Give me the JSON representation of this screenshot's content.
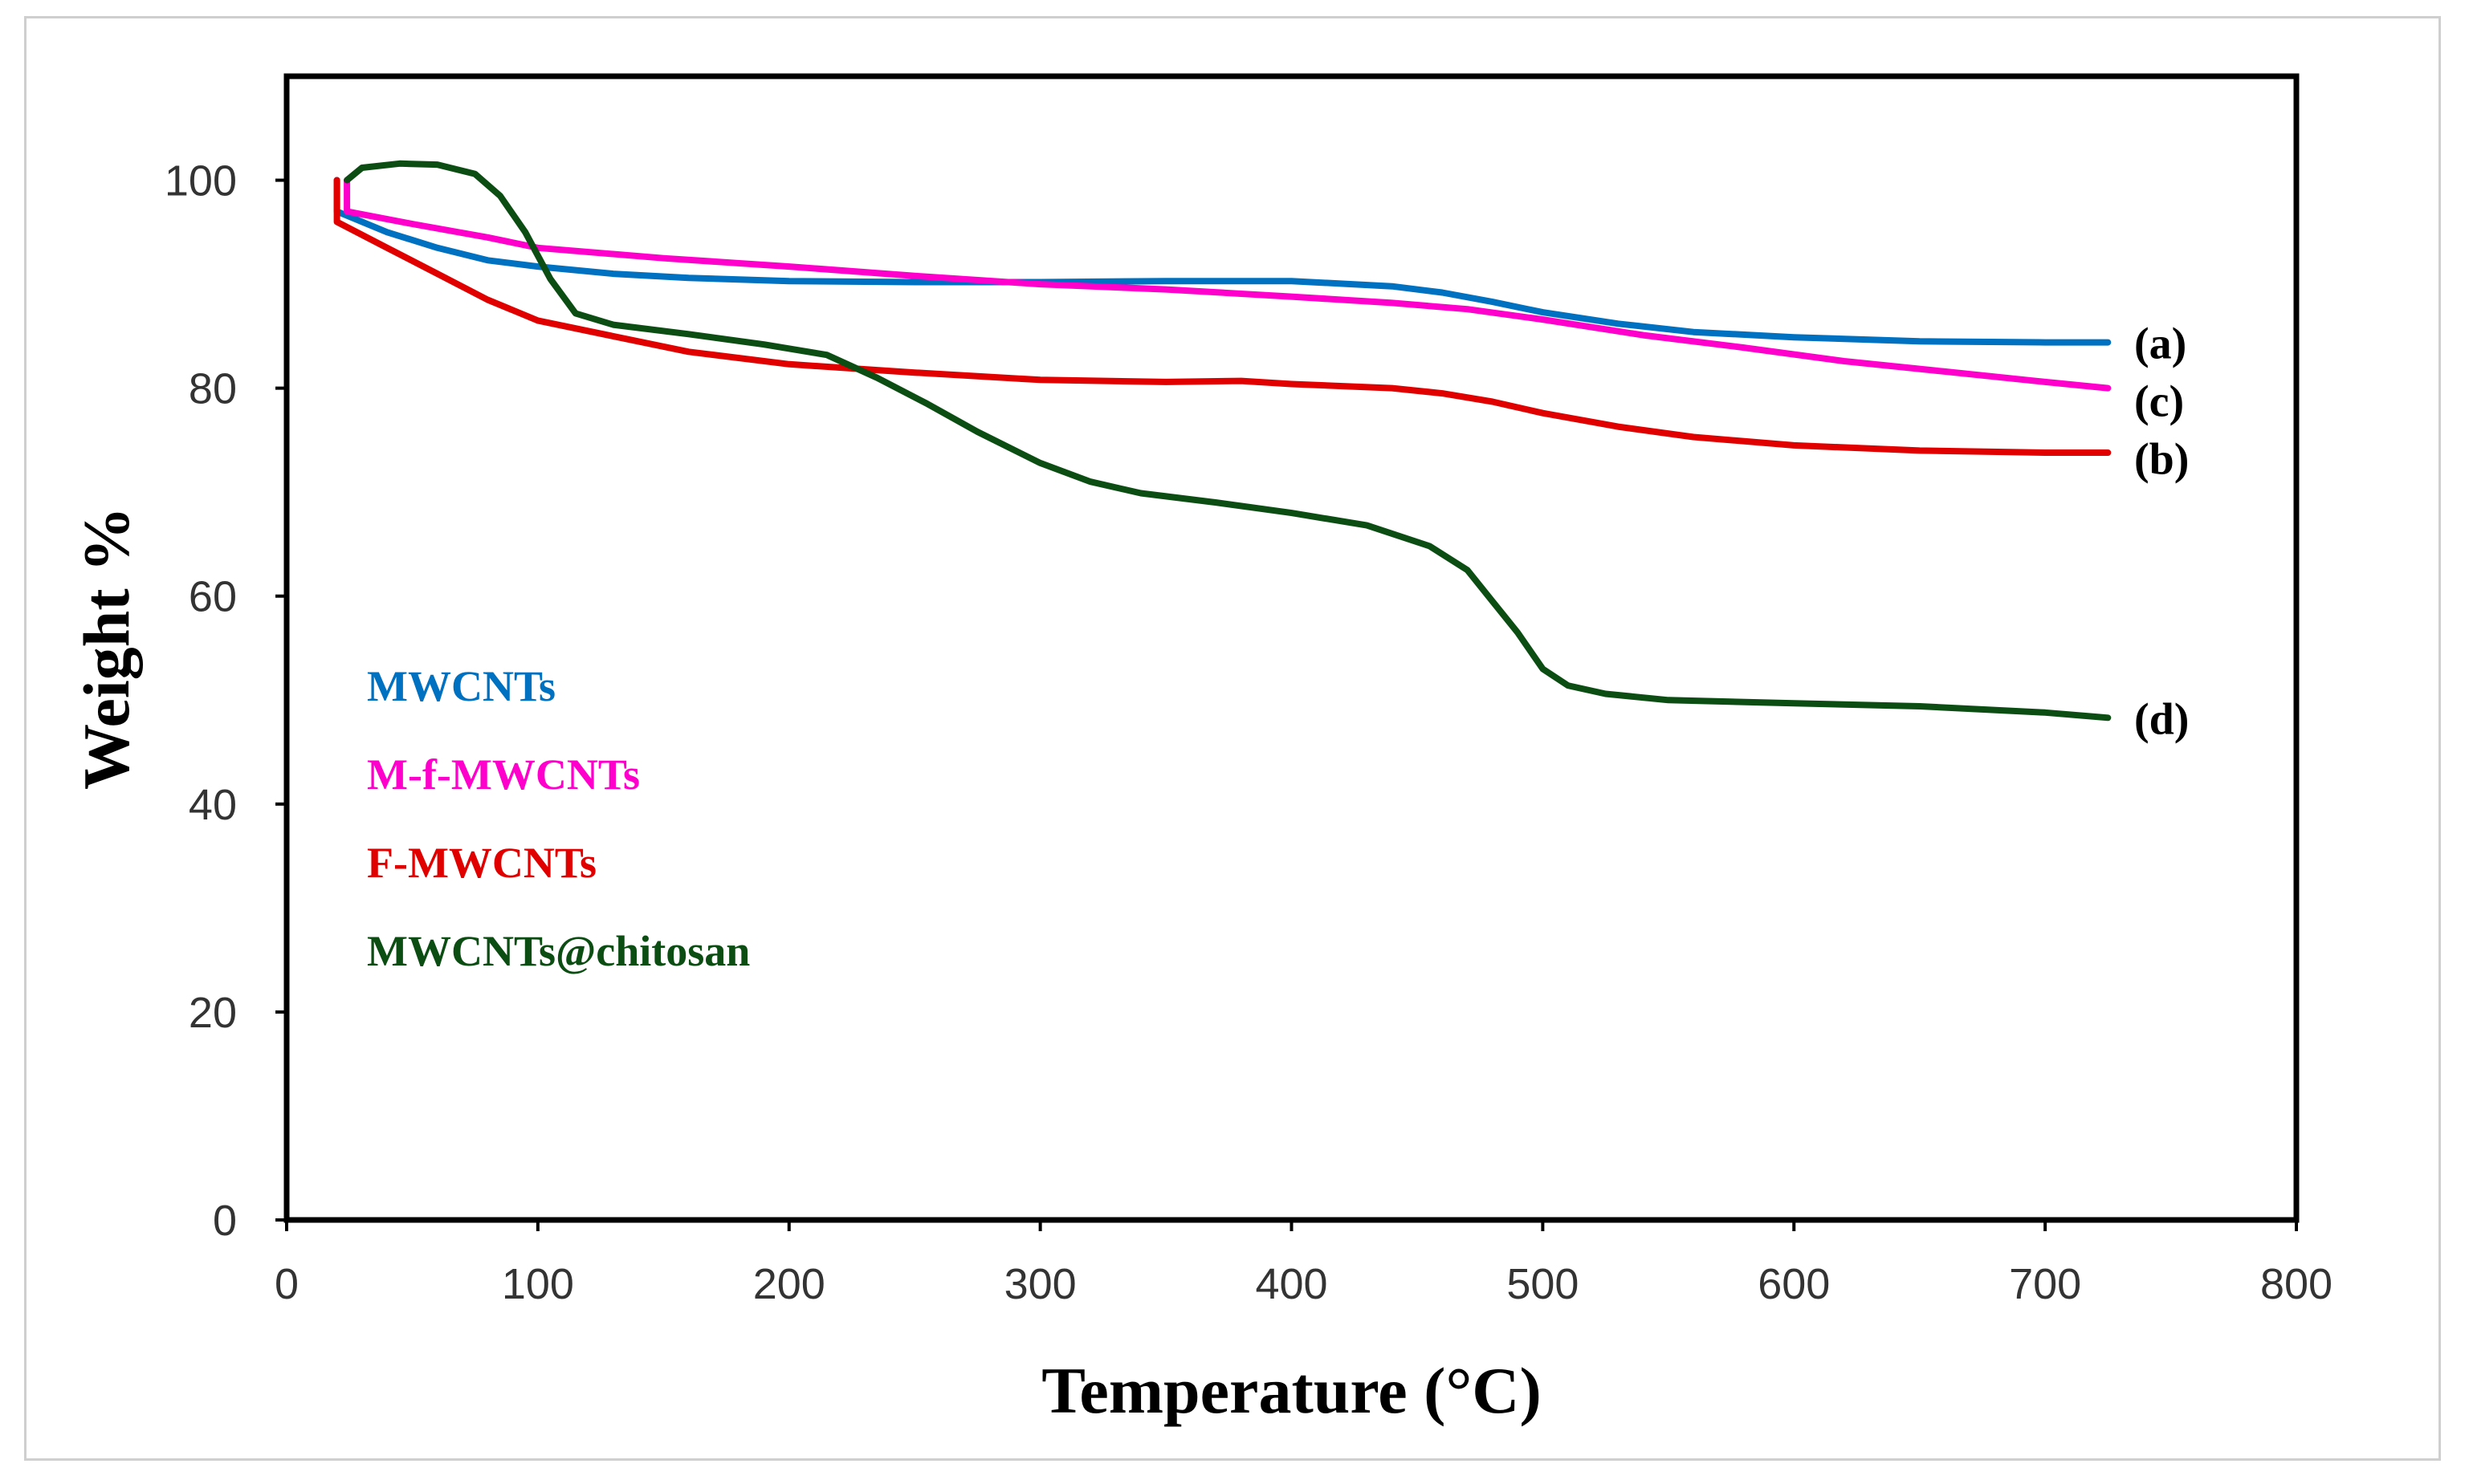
{
  "chart_data": {
    "type": "line",
    "xlabel": "Temperature (°C)",
    "ylabel": "Weight %",
    "xlim": [
      0,
      800
    ],
    "ylim": [
      0,
      100
    ],
    "ymax_display": 110,
    "xticks": [
      0,
      100,
      200,
      300,
      400,
      500,
      600,
      700,
      800
    ],
    "yticks": [
      0,
      20,
      40,
      60,
      80,
      100
    ],
    "grid": false,
    "legend_position": "left-center",
    "series": [
      {
        "name": "MWCNTs",
        "end_label": "(a)",
        "color": "#0070C0",
        "points": [
          [
            20,
            100
          ],
          [
            20,
            97
          ],
          [
            40,
            95
          ],
          [
            60,
            93.5
          ],
          [
            80,
            92.3
          ],
          [
            100,
            91.7
          ],
          [
            130,
            91
          ],
          [
            160,
            90.6
          ],
          [
            200,
            90.3
          ],
          [
            250,
            90.2
          ],
          [
            300,
            90.2
          ],
          [
            350,
            90.3
          ],
          [
            400,
            90.3
          ],
          [
            440,
            89.8
          ],
          [
            460,
            89.2
          ],
          [
            480,
            88.3
          ],
          [
            500,
            87.3
          ],
          [
            530,
            86.2
          ],
          [
            560,
            85.4
          ],
          [
            600,
            84.9
          ],
          [
            650,
            84.5
          ],
          [
            700,
            84.4
          ],
          [
            725,
            84.4
          ]
        ]
      },
      {
        "name": "M-f-MWCNTs",
        "end_label": "(c)",
        "color": "#FF00CC",
        "points": [
          [
            24,
            100
          ],
          [
            24,
            97
          ],
          [
            50,
            95.8
          ],
          [
            80,
            94.5
          ],
          [
            100,
            93.5
          ],
          [
            150,
            92.5
          ],
          [
            200,
            91.7
          ],
          [
            250,
            90.8
          ],
          [
            300,
            90
          ],
          [
            350,
            89.5
          ],
          [
            400,
            88.8
          ],
          [
            440,
            88.2
          ],
          [
            470,
            87.6
          ],
          [
            500,
            86.6
          ],
          [
            540,
            85.1
          ],
          [
            580,
            83.9
          ],
          [
            620,
            82.6
          ],
          [
            660,
            81.6
          ],
          [
            700,
            80.6
          ],
          [
            725,
            80
          ]
        ]
      },
      {
        "name": "F-MWCNTs",
        "end_label": "(b)",
        "color": "#E00000",
        "points": [
          [
            20,
            100
          ],
          [
            20,
            96
          ],
          [
            40,
            93.5
          ],
          [
            60,
            91
          ],
          [
            80,
            88.5
          ],
          [
            100,
            86.5
          ],
          [
            130,
            85
          ],
          [
            160,
            83.5
          ],
          [
            200,
            82.3
          ],
          [
            250,
            81.5
          ],
          [
            300,
            80.8
          ],
          [
            350,
            80.6
          ],
          [
            380,
            80.7
          ],
          [
            400,
            80.4
          ],
          [
            440,
            80
          ],
          [
            460,
            79.5
          ],
          [
            480,
            78.7
          ],
          [
            500,
            77.6
          ],
          [
            530,
            76.3
          ],
          [
            560,
            75.3
          ],
          [
            600,
            74.5
          ],
          [
            650,
            74
          ],
          [
            700,
            73.8
          ],
          [
            725,
            73.8
          ]
        ]
      },
      {
        "name": "MWCNTs@chitosan",
        "end_label": "(d)",
        "color": "#0B4D12",
        "points": [
          [
            24,
            100
          ],
          [
            30,
            101.2
          ],
          [
            45,
            101.6
          ],
          [
            60,
            101.5
          ],
          [
            75,
            100.6
          ],
          [
            85,
            98.5
          ],
          [
            95,
            95
          ],
          [
            105,
            90.5
          ],
          [
            115,
            87.2
          ],
          [
            130,
            86.1
          ],
          [
            160,
            85.2
          ],
          [
            190,
            84.2
          ],
          [
            215,
            83.2
          ],
          [
            235,
            81
          ],
          [
            255,
            78.5
          ],
          [
            275,
            75.8
          ],
          [
            300,
            72.8
          ],
          [
            320,
            71
          ],
          [
            340,
            69.9
          ],
          [
            370,
            69
          ],
          [
            400,
            68
          ],
          [
            430,
            66.8
          ],
          [
            455,
            64.8
          ],
          [
            470,
            62.5
          ],
          [
            480,
            59.5
          ],
          [
            490,
            56.5
          ],
          [
            500,
            53
          ],
          [
            510,
            51.4
          ],
          [
            525,
            50.6
          ],
          [
            550,
            50
          ],
          [
            600,
            49.7
          ],
          [
            650,
            49.4
          ],
          [
            700,
            48.8
          ],
          [
            725,
            48.3
          ]
        ]
      }
    ]
  }
}
